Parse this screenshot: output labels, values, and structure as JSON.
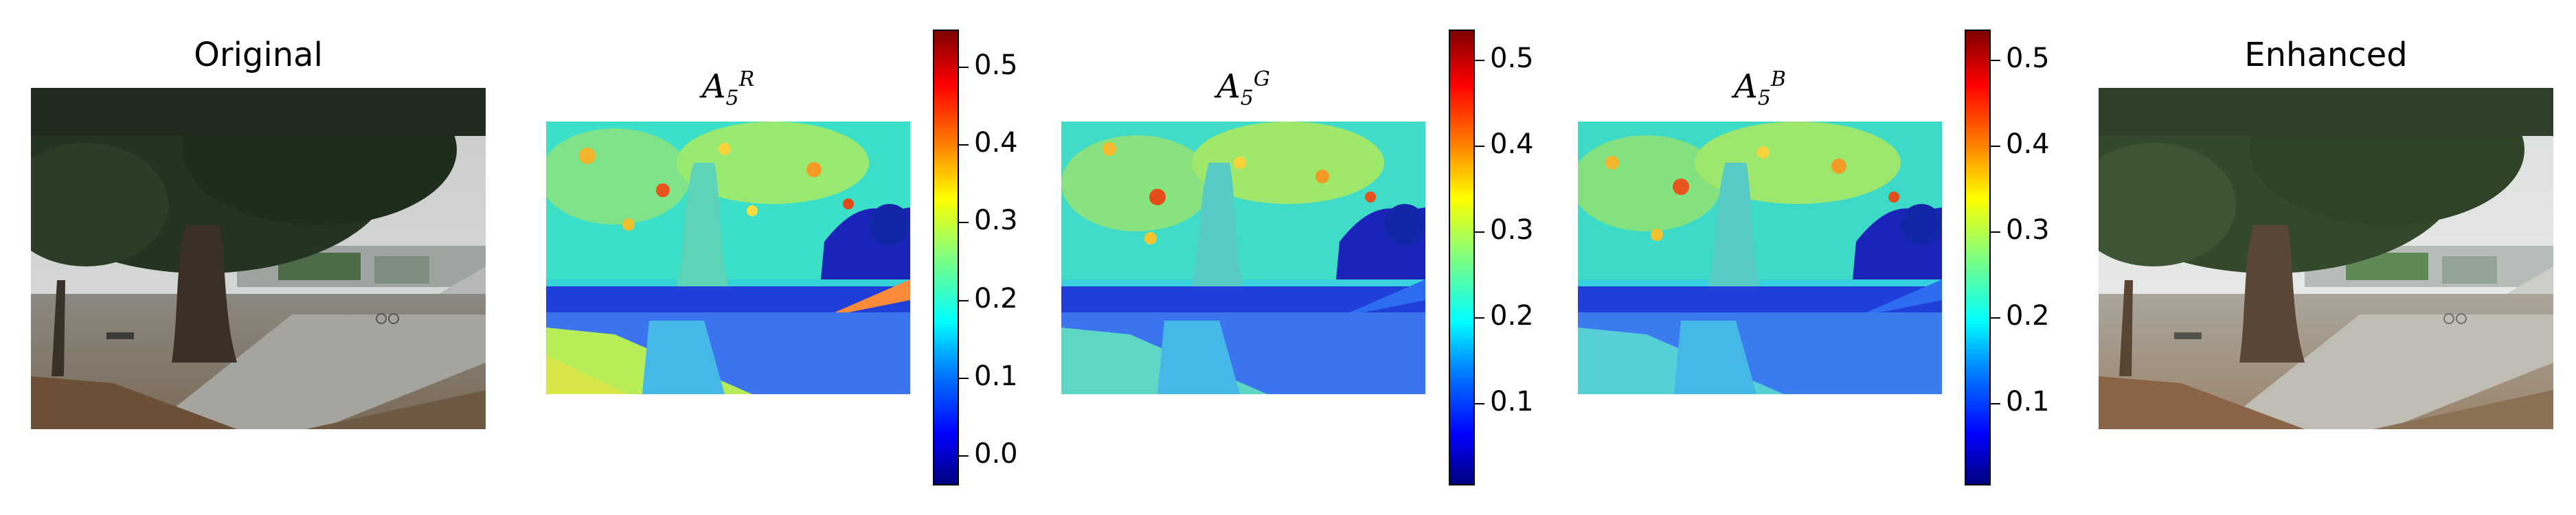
{
  "panels": {
    "original": {
      "title": "Original"
    },
    "a5r": {
      "symbol": "A",
      "subscript": "5",
      "superscript": "R"
    },
    "a5g": {
      "symbol": "A",
      "subscript": "5",
      "superscript": "G"
    },
    "a5b": {
      "symbol": "A",
      "subscript": "5",
      "superscript": "B"
    },
    "enhanced": {
      "title": "Enhanced"
    }
  },
  "colorbars": {
    "r": {
      "ticks": [
        "0.5",
        "0.4",
        "0.3",
        "0.2",
        "0.1",
        "0.0"
      ],
      "range": [
        -0.04,
        0.55
      ]
    },
    "g": {
      "ticks": [
        "0.5",
        "0.4",
        "0.3",
        "0.2",
        "0.1"
      ],
      "range": [
        0.0,
        0.53
      ]
    },
    "b": {
      "ticks": [
        "0.5",
        "0.4",
        "0.3",
        "0.2",
        "0.1"
      ],
      "range": [
        0.0,
        0.53
      ]
    }
  },
  "colormap": "jet"
}
